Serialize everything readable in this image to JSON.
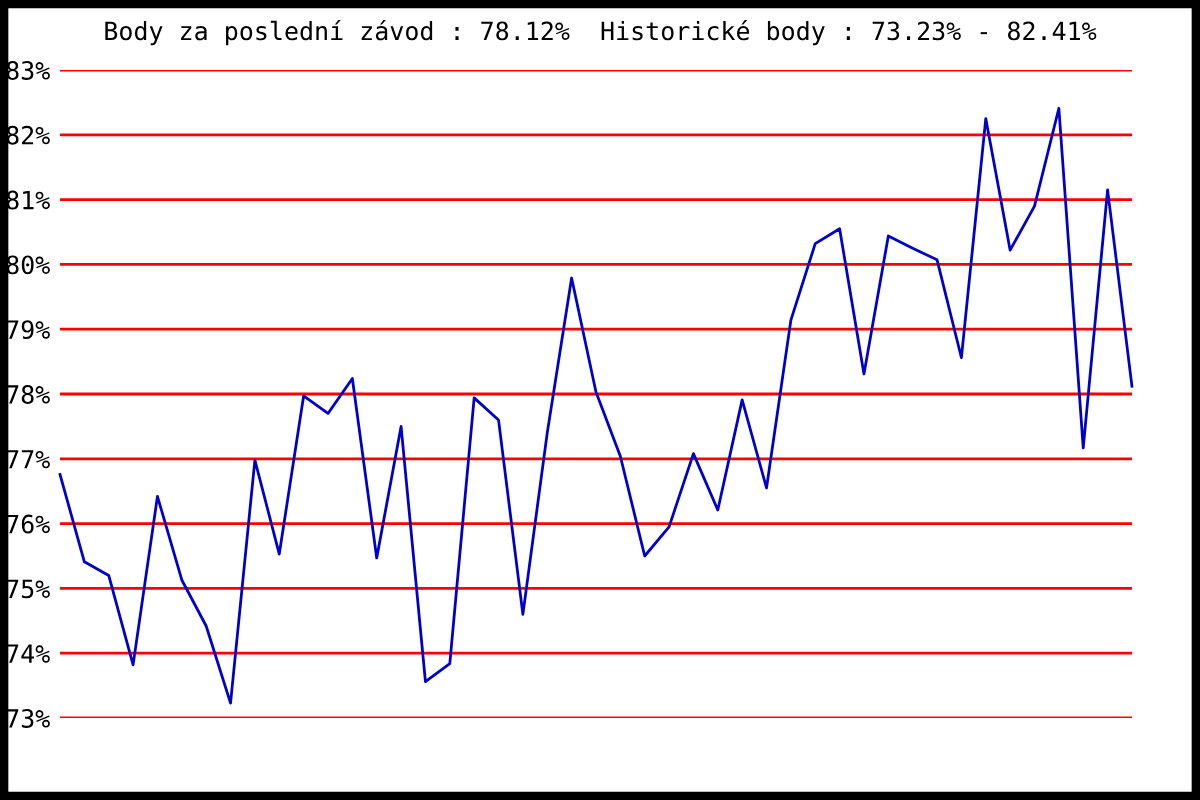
{
  "chart_data": {
    "type": "line",
    "title": "Body za poslední závod : 78.12%  Historické body : 73.23% - 82.41%",
    "categories": [
      null,
      null,
      null,
      null,
      null,
      null,
      null,
      null,
      null,
      null,
      null,
      null,
      null,
      null,
      null,
      null,
      null,
      null,
      null,
      null,
      null,
      null,
      null,
      null,
      null,
      null,
      null,
      null,
      null,
      null,
      null,
      null,
      null,
      null,
      null,
      null,
      null,
      null,
      null,
      null,
      null,
      null,
      null,
      null,
      null
    ],
    "series": [
      {
        "color": "#0000cc",
        "values": [
          76.76,
          75.41,
          75.2,
          73.82,
          76.42,
          75.13,
          74.42,
          73.23,
          76.98,
          75.53,
          77.97,
          77.7,
          78.24,
          75.47,
          77.5,
          73.56,
          73.84,
          77.94,
          77.6,
          74.6,
          77.4,
          79.79,
          78.03,
          77.04,
          75.5,
          75.95,
          77.08,
          76.21,
          77.91,
          76.55,
          79.14,
          80.32,
          80.55,
          78.31,
          80.44,
          80.25,
          80.07,
          78.56,
          82.25,
          80.22,
          80.9,
          82.41,
          77.17,
          81.15,
          78.12
        ]
      }
    ],
    "ylim": [
      73,
      83
    ],
    "yticks": [
      {
        "value": 73,
        "label": "73%"
      },
      {
        "value": 74,
        "label": "74%"
      },
      {
        "value": 75,
        "label": "75%"
      },
      {
        "value": 76,
        "label": "76%"
      },
      {
        "value": 77,
        "label": "77%"
      },
      {
        "value": 78,
        "label": "78%"
      },
      {
        "value": 79,
        "label": "79%"
      },
      {
        "value": 80,
        "label": "80%"
      },
      {
        "value": 81,
        "label": "81%"
      },
      {
        "value": 82,
        "label": "82%"
      },
      {
        "value": 83,
        "label": "83%"
      }
    ],
    "grid": "y",
    "tick_labels": "y",
    "marker": "none",
    "line_style": "solid"
  }
}
